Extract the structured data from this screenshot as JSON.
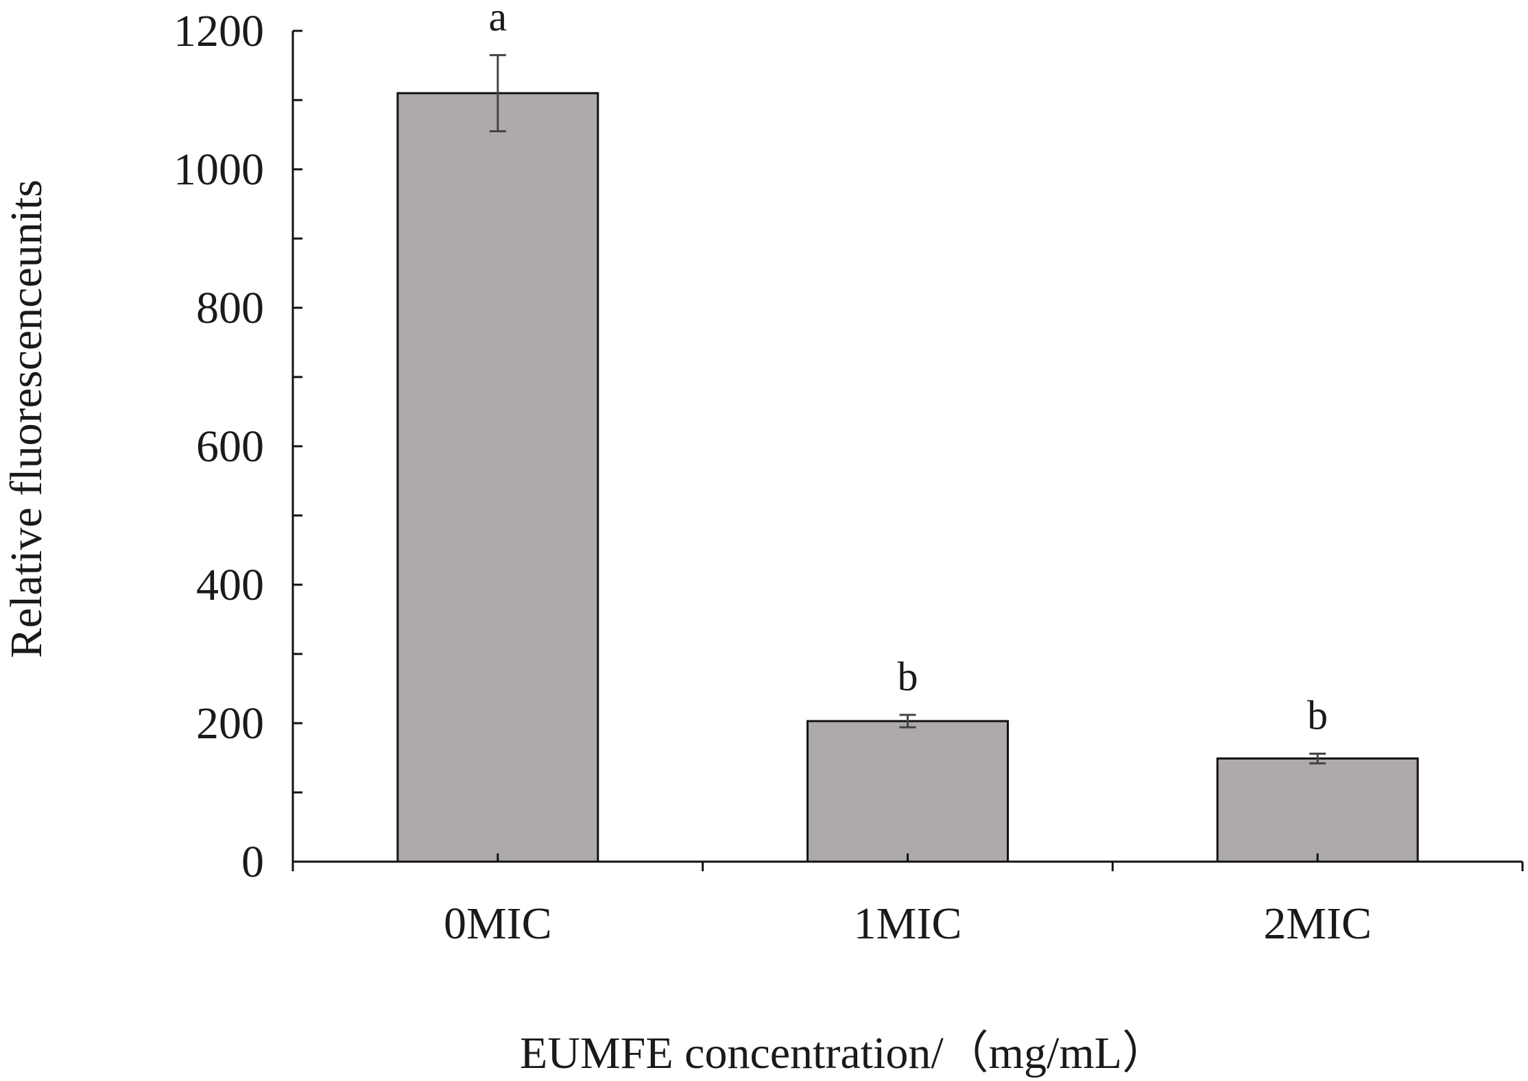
{
  "chart_data": {
    "type": "bar",
    "title": "",
    "xlabel": "EUMFE concentration/（mg/mL）",
    "ylabel": "Relative fluorescenceunits",
    "categories": [
      "0MIC",
      "1MIC",
      "2MIC"
    ],
    "values": [
      1110,
      203,
      149
    ],
    "errors": [
      55,
      9,
      7
    ],
    "significance": [
      "a",
      "b",
      "b"
    ],
    "ylim": [
      0,
      1200
    ],
    "yticks": [
      0,
      200,
      400,
      600,
      800,
      1000,
      1200
    ],
    "yticks_labels": [
      "0",
      "200",
      "400",
      "600",
      "800",
      "1000",
      "1200"
    ],
    "grid": false,
    "legend": "none",
    "colors": {
      "bar_fill": "#aeaaa9",
      "bar_stroke": "#111111",
      "axis": "#111111",
      "error_bar": "#444444"
    }
  }
}
